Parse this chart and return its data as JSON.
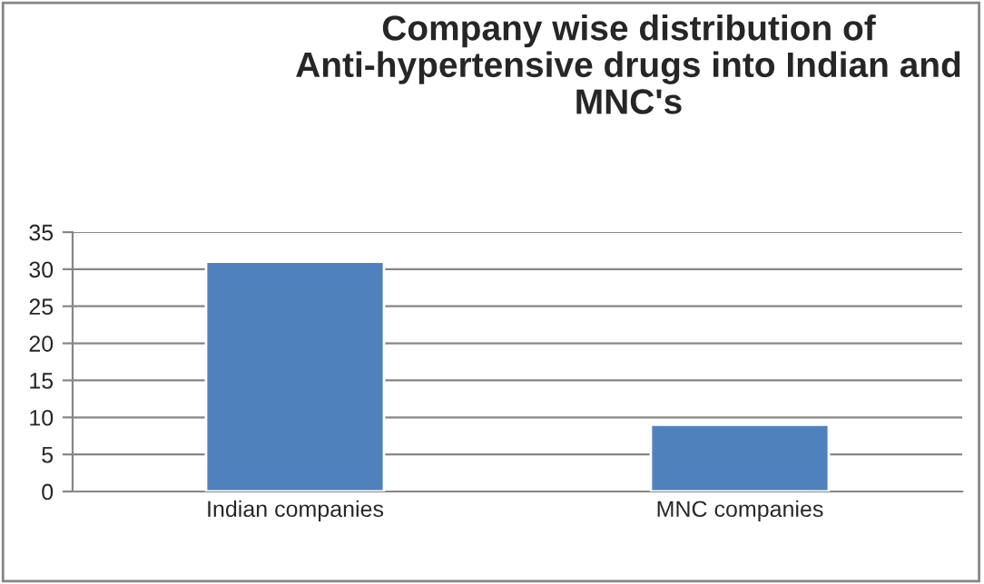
{
  "chart_data": {
    "type": "bar",
    "title": "Company wise distribution of Anti-hypertensive drugs into Indian and MNC's",
    "categories": [
      "Indian companies",
      "MNC companies"
    ],
    "values": [
      31,
      9
    ],
    "color": "#4f81bd",
    "ylim": [
      0,
      35
    ],
    "yticks": [
      0,
      5,
      10,
      15,
      20,
      25,
      30,
      35
    ],
    "grid": "y"
  }
}
